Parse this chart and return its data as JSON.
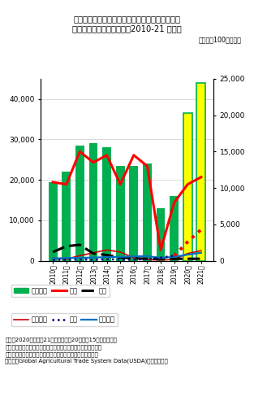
{
  "title_line1": "（表）　中国に対する米国の農水産物輸出総額と",
  "title_line2": "　主要５品目の輸出額　（2010-21 暦年）",
  "unit_label": "（単位：100万ドル）",
  "years": [
    "2010年",
    "2011年",
    "2012年",
    "2013年",
    "2014年",
    "2015年",
    "2016年",
    "2017年",
    "2018年",
    "2019年",
    "2020年",
    "2021年"
  ],
  "bar_values": [
    19500,
    22000,
    28500,
    29000,
    28000,
    23500,
    23500,
    24000,
    13000,
    16000,
    36500,
    44000
  ],
  "bar_colors_main": [
    "#00b050",
    "#00b050",
    "#00b050",
    "#00b050",
    "#00b050",
    "#00b050",
    "#00b050",
    "#00b050",
    "#00b050",
    "#00b050",
    "#ffff00",
    "#ffff00"
  ],
  "soybean_values": [
    10800,
    10500,
    15000,
    13500,
    14500,
    10500,
    14500,
    13000,
    1500,
    8000,
    10500,
    11500
  ],
  "cotton_values": [
    1200,
    2000,
    2200,
    1000,
    800,
    450,
    350,
    280,
    280,
    280,
    280,
    280
  ],
  "grain_values": [
    350,
    250,
    700,
    1100,
    1500,
    1200,
    400,
    170,
    100,
    200,
    1000,
    1400
  ],
  "pork_values_early": [
    100,
    150,
    180,
    150,
    220,
    170,
    170,
    220,
    450,
    700
  ],
  "pork_values_late": [
    700,
    2600,
    4300
  ],
  "dairy_values": [
    300,
    400,
    400,
    450,
    500,
    550,
    600,
    650,
    400,
    550,
    850,
    1100
  ],
  "ylim_left": [
    0,
    45000
  ],
  "ylim_right": [
    0,
    25000
  ],
  "left_yticks": [
    0,
    10000,
    20000,
    30000,
    40000
  ],
  "right_yticks": [
    0,
    5000,
    10000,
    15000,
    20000,
    25000
  ],
  "background_color": "#ffffff",
  "chart_bg": "#ffffff",
  "grid_color": "#cccccc",
  "note_line1": "（注）2020年および21年の数値は、20年１月15日締結の米中",
  "note_line2": "　貿易「第一段階合意」の目標値。なお、棒グラフの輸出総額",
  "note_line3": "　は左目盛り、折れ線グラフの５品目の輸出額は右目盛り。",
  "note_line4": "（資料）Global Agricultural Trade System Data(USDA)等より作成。"
}
